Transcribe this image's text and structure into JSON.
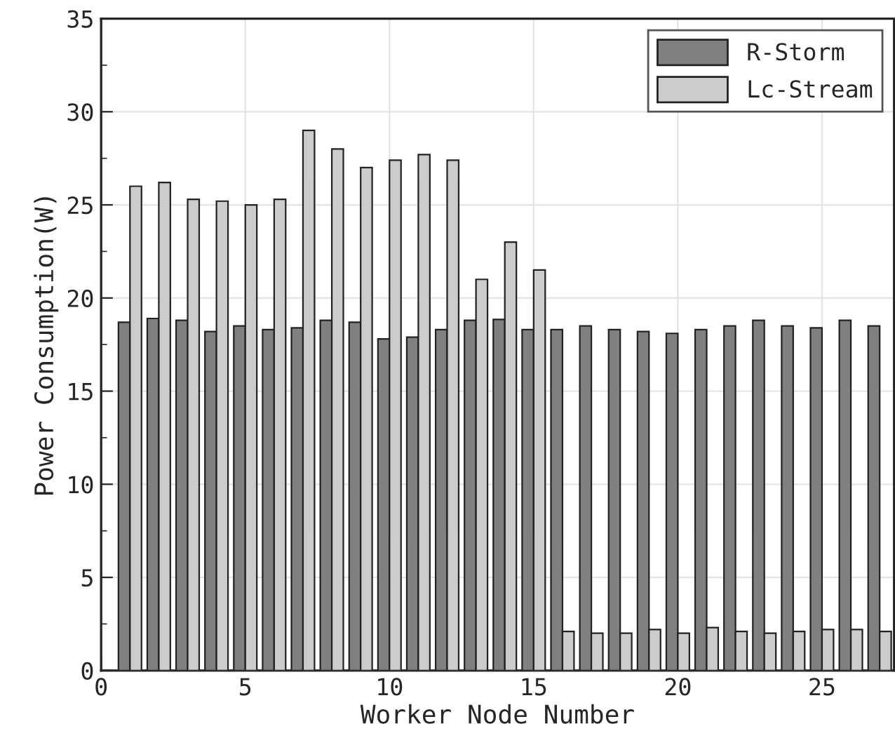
{
  "chart_data": {
    "type": "bar",
    "xlabel": "Worker Node Number",
    "ylabel": "Power Consumption(W)",
    "x": [
      1,
      2,
      3,
      4,
      5,
      6,
      7,
      8,
      9,
      10,
      11,
      12,
      13,
      14,
      15,
      16,
      17,
      18,
      19,
      20,
      21,
      22,
      23,
      24,
      25,
      26,
      27
    ],
    "series": [
      {
        "name": "R-Storm",
        "color": "#808080",
        "values": [
          18.7,
          18.9,
          18.8,
          18.2,
          18.5,
          18.3,
          18.4,
          18.8,
          18.7,
          17.8,
          17.9,
          18.3,
          18.8,
          18.85,
          18.3,
          18.3,
          18.5,
          18.3,
          18.2,
          18.1,
          18.3,
          18.5,
          18.8,
          18.5,
          18.4,
          18.8,
          18.5
        ]
      },
      {
        "name": "Lc-Stream",
        "color": "#cccccc",
        "values": [
          26,
          26.2,
          25.3,
          25.2,
          25,
          25.3,
          29,
          28,
          27,
          27.4,
          27.7,
          27.4,
          21,
          23,
          21.5,
          2.1,
          2.0,
          2.0,
          2.2,
          2.0,
          2.3,
          2.1,
          2.0,
          2.1,
          2.2,
          2.2,
          2.1
        ]
      }
    ],
    "xlim": [
      0,
      27.5
    ],
    "xticks": [
      0,
      5,
      10,
      15,
      20,
      25
    ],
    "ylim": [
      0,
      35
    ],
    "yticks": [
      0,
      5,
      10,
      15,
      20,
      25,
      30,
      35
    ],
    "grid": true,
    "legend": "top right"
  }
}
